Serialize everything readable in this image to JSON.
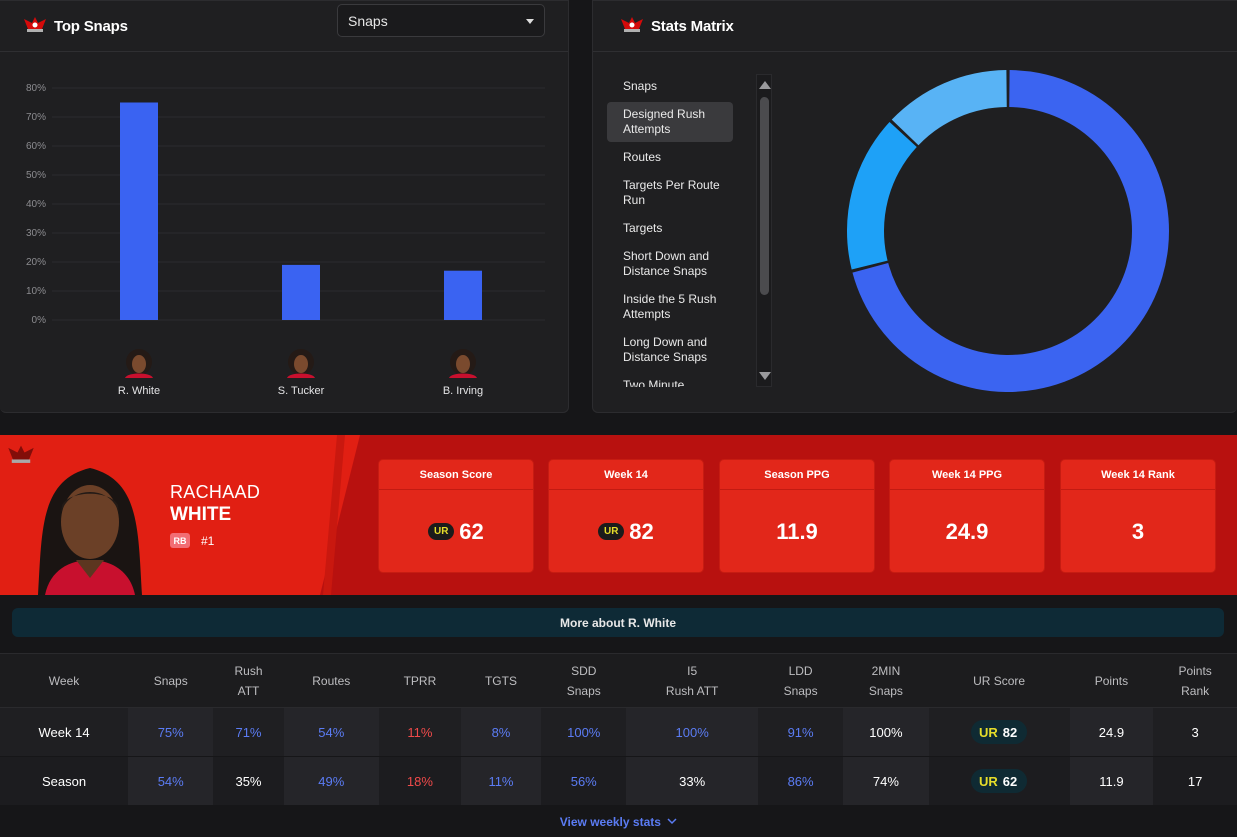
{
  "top_snaps": {
    "title": "Top Snaps",
    "dropdown_value": "Snaps",
    "chart_data": {
      "type": "bar",
      "categories": [
        "R. White",
        "S. Tucker",
        "B. Irving"
      ],
      "values": [
        75,
        19,
        17
      ],
      "yticks": [
        "0%",
        "10%",
        "20%",
        "30%",
        "40%",
        "50%",
        "60%",
        "70%",
        "80%"
      ],
      "ylim": [
        0,
        80
      ],
      "colors": {
        "bar": "#3a63f2",
        "grid": "#2b2b2e"
      }
    }
  },
  "stats_matrix": {
    "title": "Stats Matrix",
    "items": [
      "Snaps",
      "Designed Rush Attempts",
      "Routes",
      "Targets Per Route Run",
      "Targets",
      "Short Down and Distance Snaps",
      "Inside the 5 Rush Attempts",
      "Long Down and Distance Snaps",
      "Two Minute"
    ],
    "active_index": 1,
    "chart_data": {
      "type": "pie",
      "values": [
        71,
        16,
        13
      ],
      "colors": [
        "#3b64f1",
        "#1ea1f7",
        "#58b3f5"
      ]
    }
  },
  "player": {
    "first_name": "RACHAAD",
    "last_name": "WHITE",
    "position": "RB",
    "jersey": "#1",
    "cards": [
      {
        "label": "Season Score",
        "value": "62",
        "ur": true
      },
      {
        "label": "Week 14",
        "value": "82",
        "ur": true
      },
      {
        "label": "Season PPG",
        "value": "11.9",
        "ur": false
      },
      {
        "label": "Week 14 PPG",
        "value": "24.9",
        "ur": false
      },
      {
        "label": "Week 14 Rank",
        "value": "3",
        "ur": false
      }
    ]
  },
  "more_about": "More about R. White",
  "table": {
    "headers": [
      [
        "Week"
      ],
      [
        "Snaps"
      ],
      [
        "Rush",
        "ATT"
      ],
      [
        "Routes"
      ],
      [
        "TPRR"
      ],
      [
        "TGTS"
      ],
      [
        "SDD",
        "Snaps"
      ],
      [
        "I5",
        "Rush ATT"
      ],
      [
        "LDD",
        "Snaps"
      ],
      [
        "2MIN",
        "Snaps"
      ],
      [
        "UR Score"
      ],
      [
        "Points"
      ],
      [
        "Points",
        "Rank"
      ]
    ],
    "rows": [
      {
        "week": "Week 14",
        "snaps": "75%",
        "rush_att": "71%",
        "routes": "54%",
        "tprr": "11%",
        "tgts": "8%",
        "sdd": "100%",
        "i5": "100%",
        "ldd": "91%",
        "two_min": "100%",
        "ur_score": "82",
        "points": "24.9",
        "rank": "3"
      },
      {
        "week": "Season",
        "snaps": "54%",
        "rush_att": "35%",
        "routes": "49%",
        "tprr": "18%",
        "tgts": "11%",
        "sdd": "56%",
        "i5": "33%",
        "ldd": "86%",
        "two_min": "74%",
        "ur_score": "62",
        "points": "11.9",
        "rank": "17"
      }
    ],
    "ur_mark": "UR"
  },
  "view_weekly": "View weekly stats"
}
